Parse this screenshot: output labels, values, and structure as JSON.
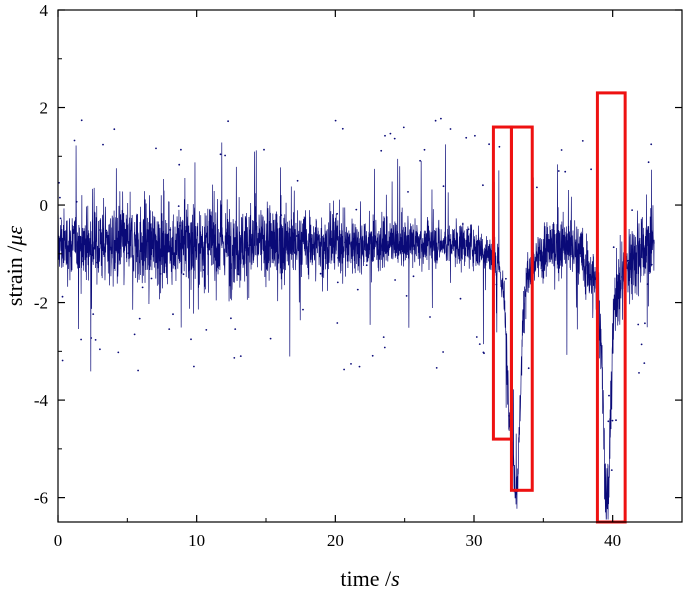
{
  "chart_data": {
    "type": "line",
    "title": "",
    "xlabel": "time /",
    "xlabel_unit": "s",
    "ylabel": "strain /",
    "ylabel_unit": "με",
    "xlim": [
      0,
      45
    ],
    "ylim": [
      -6.5,
      4
    ],
    "x_ticks": [
      0,
      10,
      20,
      30,
      40
    ],
    "y_ticks": [
      -6,
      -4,
      -2,
      0,
      2,
      4
    ],
    "x_tick_labels": [
      "0",
      "10",
      "20",
      "30",
      "40"
    ],
    "y_tick_labels": [
      "-6",
      "-4",
      "-2",
      "0",
      "2",
      "4"
    ],
    "grid": false,
    "series": [
      {
        "color": "#0a0a78",
        "x_range": [
          0,
          43
        ],
        "baseline": -0.8,
        "noise_amplitude": 1.1,
        "dips": [
          {
            "center": 32.6,
            "min": -4.3
          },
          {
            "center": 33.1,
            "min": -5.7
          },
          {
            "center": 39.6,
            "min": -6.3
          }
        ]
      }
    ],
    "highlight_boxes": [
      {
        "x": [
          31.4,
          32.7
        ],
        "y": [
          -4.8,
          1.6
        ]
      },
      {
        "x": [
          32.7,
          34.2
        ],
        "y": [
          -5.85,
          1.6
        ]
      },
      {
        "x": [
          38.9,
          40.9
        ],
        "y": [
          -6.5,
          2.3
        ]
      }
    ],
    "box_color": "#ee1111"
  }
}
